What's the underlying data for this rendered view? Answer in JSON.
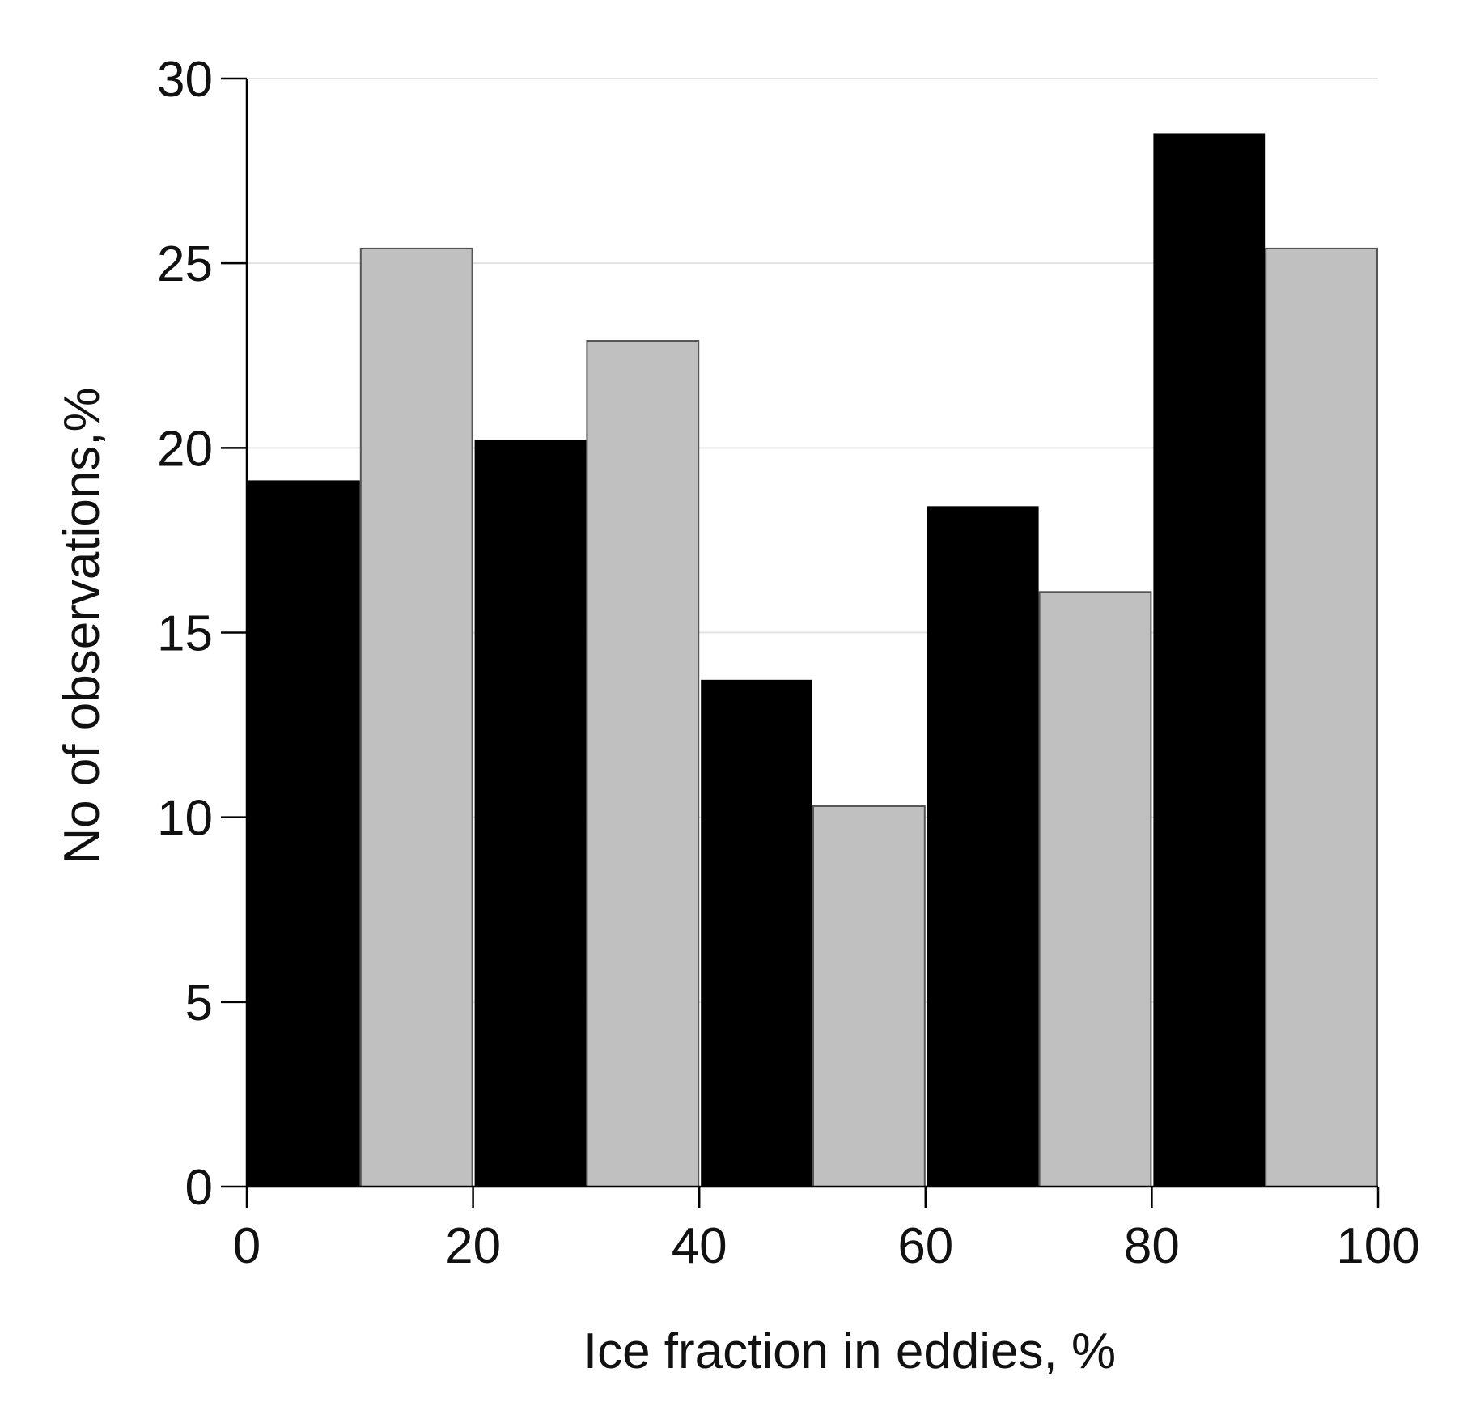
{
  "chart_data": {
    "type": "bar",
    "title": "",
    "xlabel": "Ice fraction in eddies, %",
    "ylabel": "No of observations,%",
    "xlim": [
      0,
      100
    ],
    "ylim": [
      0,
      30
    ],
    "x_ticks": [
      "0",
      "20",
      "40",
      "60",
      "80",
      "100"
    ],
    "y_ticks": [
      "0",
      "5",
      "10",
      "15",
      "20",
      "25",
      "30"
    ],
    "grid": "horizontal",
    "legend": "none",
    "bin_edges": [
      0,
      20,
      40,
      60,
      80,
      100
    ],
    "series": [
      {
        "color": "#000000",
        "bins": [
          [
            0,
            10
          ],
          [
            20,
            30
          ],
          [
            40,
            50
          ],
          [
            60,
            70
          ],
          [
            80,
            90
          ]
        ],
        "values": [
          19.1,
          20.2,
          13.7,
          18.4,
          28.5
        ]
      },
      {
        "color": "#c0c0c0",
        "bins": [
          [
            10,
            20
          ],
          [
            30,
            40
          ],
          [
            50,
            60
          ],
          [
            70,
            80
          ],
          [
            90,
            100
          ]
        ],
        "values": [
          25.4,
          22.9,
          10.3,
          16.1,
          25.4
        ]
      }
    ]
  }
}
